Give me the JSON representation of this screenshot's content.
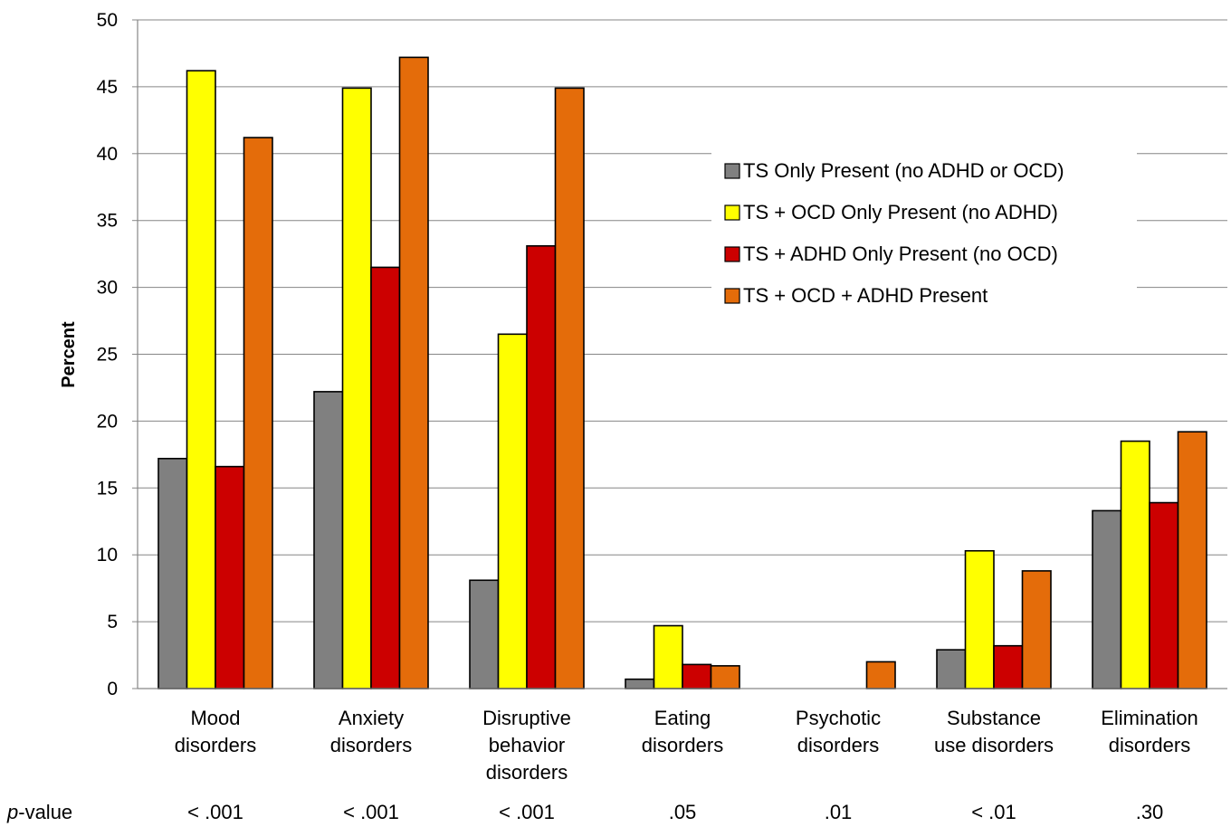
{
  "chart_data": {
    "type": "bar",
    "ylabel": "Percent",
    "ylim": [
      0,
      50
    ],
    "yticks": [
      0,
      5,
      10,
      15,
      20,
      25,
      30,
      35,
      40,
      45,
      50
    ],
    "grid": true,
    "legend_position": "right",
    "categories": [
      [
        "Mood",
        "disorders"
      ],
      [
        "Anxiety",
        "disorders"
      ],
      [
        "Disruptive",
        "behavior",
        "disorders"
      ],
      [
        "Eating",
        "disorders"
      ],
      [
        "Psychotic",
        "disorders"
      ],
      [
        "Substance",
        "use disorders"
      ],
      [
        "Elimination",
        "disorders"
      ]
    ],
    "series": [
      {
        "name": "TS Only Present (no ADHD or OCD)",
        "color": "#808080",
        "values": [
          17.2,
          22.2,
          8.1,
          0.7,
          0,
          2.9,
          13.3
        ]
      },
      {
        "name": "TS + OCD Only Present (no ADHD)",
        "color": "#FFFF00",
        "values": [
          46.2,
          44.9,
          26.5,
          4.7,
          0,
          10.3,
          18.5
        ]
      },
      {
        "name": "TS + ADHD Only Present (no OCD)",
        "color": "#CC0000",
        "values": [
          16.6,
          31.5,
          33.1,
          1.8,
          0,
          3.2,
          13.9
        ]
      },
      {
        "name": "TS + OCD + ADHD Present",
        "color": "#E46C0A",
        "values": [
          41.2,
          47.2,
          44.9,
          1.7,
          2.0,
          8.8,
          19.2
        ]
      }
    ],
    "pvalue_label_italic": "p",
    "pvalue_label_rest": "-value",
    "pvalues": [
      "< .001",
      "< .001",
      "< .001",
      ".05",
      ".01",
      "< .01",
      ".30"
    ]
  }
}
